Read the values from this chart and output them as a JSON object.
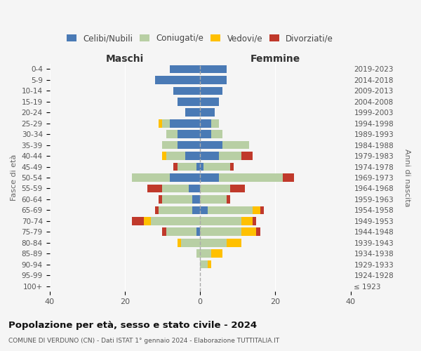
{
  "age_groups": [
    "0-4",
    "5-9",
    "10-14",
    "15-19",
    "20-24",
    "25-29",
    "30-34",
    "35-39",
    "40-44",
    "45-49",
    "50-54",
    "55-59",
    "60-64",
    "65-69",
    "70-74",
    "75-79",
    "80-84",
    "85-89",
    "90-94",
    "95-99",
    "100+"
  ],
  "birth_years": [
    "2019-2023",
    "2014-2018",
    "2009-2013",
    "2004-2008",
    "1999-2003",
    "1994-1998",
    "1989-1993",
    "1984-1988",
    "1979-1983",
    "1974-1978",
    "1969-1973",
    "1964-1968",
    "1959-1963",
    "1954-1958",
    "1949-1953",
    "1944-1948",
    "1939-1943",
    "1934-1938",
    "1929-1933",
    "1924-1928",
    "≤ 1923"
  ],
  "colors": {
    "celibi": "#4a7ab5",
    "coniugati": "#b8cfa4",
    "vedovi": "#ffc000",
    "divorziati": "#c0392b"
  },
  "maschi": {
    "celibi": [
      8,
      12,
      7,
      6,
      4,
      8,
      6,
      6,
      4,
      1,
      8,
      3,
      2,
      2,
      0,
      1,
      0,
      0,
      0,
      0,
      0
    ],
    "coniugati": [
      0,
      0,
      0,
      0,
      0,
      2,
      3,
      4,
      5,
      5,
      10,
      7,
      8,
      9,
      13,
      8,
      5,
      1,
      0,
      0,
      0
    ],
    "vedovi": [
      0,
      0,
      0,
      0,
      0,
      1,
      0,
      0,
      1,
      0,
      0,
      0,
      0,
      0,
      2,
      0,
      1,
      0,
      0,
      0,
      0
    ],
    "divorziati": [
      0,
      0,
      0,
      0,
      0,
      0,
      0,
      0,
      0,
      1,
      0,
      4,
      1,
      1,
      3,
      1,
      0,
      0,
      0,
      0,
      0
    ]
  },
  "femmine": {
    "celibi": [
      7,
      7,
      6,
      5,
      4,
      3,
      3,
      6,
      5,
      1,
      5,
      0,
      0,
      2,
      0,
      0,
      0,
      0,
      0,
      0,
      0
    ],
    "coniugati": [
      0,
      0,
      0,
      0,
      0,
      2,
      3,
      7,
      6,
      7,
      17,
      8,
      7,
      12,
      11,
      11,
      7,
      3,
      2,
      0,
      0
    ],
    "vedovi": [
      0,
      0,
      0,
      0,
      0,
      0,
      0,
      0,
      0,
      0,
      0,
      0,
      0,
      2,
      3,
      4,
      4,
      3,
      1,
      0,
      0
    ],
    "divorziati": [
      0,
      0,
      0,
      0,
      0,
      0,
      0,
      0,
      3,
      1,
      3,
      4,
      1,
      1,
      1,
      1,
      0,
      0,
      0,
      0,
      0
    ]
  },
  "xlim": 40,
  "title": "Popolazione per età, sesso e stato civile - 2024",
  "subtitle": "COMUNE DI VERDUNO (CN) - Dati ISTAT 1° gennaio 2024 - Elaborazione TUTTITALIA.IT",
  "xlabel_left": "Maschi",
  "xlabel_right": "Femmine",
  "ylabel": "Fasce di età",
  "ylabel_right": "Anni di nascita",
  "legend_labels": [
    "Celibi/Nubili",
    "Coniugati/e",
    "Vedovi/e",
    "Divorziati/e"
  ],
  "background_color": "#f5f5f5"
}
